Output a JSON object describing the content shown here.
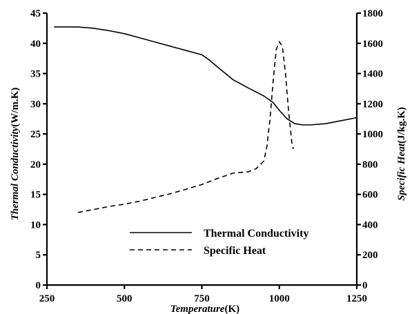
{
  "chart_data": {
    "type": "line",
    "x_axis": {
      "label_italic": "Temperature",
      "label_unit": "(K)",
      "range": [
        250,
        1250
      ],
      "ticks": [
        250,
        500,
        750,
        1000,
        1250
      ]
    },
    "y_left": {
      "label_italic": "Thermal Conductivity",
      "label_unit": "(W/m.K)",
      "range": [
        0,
        45
      ],
      "ticks": [
        0,
        5,
        10,
        15,
        20,
        25,
        30,
        35,
        40,
        45
      ]
    },
    "y_right": {
      "label_italic": "Specific Heat",
      "label_unit": "(J/kg.K)",
      "range": [
        0,
        1800
      ],
      "ticks": [
        0,
        200,
        400,
        600,
        800,
        1000,
        1200,
        1400,
        1600,
        1800
      ]
    },
    "grid": false,
    "legend_position": "bottom-center",
    "series": [
      {
        "name": "Thermal Conductivity",
        "axis": "left",
        "style": "solid",
        "x": [
          273,
          300,
          350,
          400,
          450,
          500,
          550,
          600,
          650,
          700,
          750,
          775,
          800,
          850,
          900,
          950,
          980,
          1000,
          1025,
          1050,
          1075,
          1100,
          1150,
          1200,
          1250
        ],
        "y": [
          42.7,
          42.7,
          42.7,
          42.5,
          42.1,
          41.6,
          40.9,
          40.2,
          39.5,
          38.8,
          38.1,
          37.2,
          36.1,
          34.0,
          32.6,
          31.3,
          30.2,
          28.9,
          27.5,
          26.7,
          26.5,
          26.5,
          26.7,
          27.2,
          27.7
        ]
      },
      {
        "name": "Specific Heat",
        "axis": "right",
        "style": "dashed",
        "x": [
          350,
          400,
          450,
          500,
          550,
          600,
          650,
          700,
          750,
          800,
          850,
          900,
          925,
          950,
          960,
          970,
          980,
          990,
          1000,
          1010,
          1020,
          1030,
          1040,
          1045
        ],
        "y": [
          480,
          500,
          520,
          535,
          555,
          580,
          605,
          635,
          665,
          705,
          740,
          750,
          770,
          820,
          920,
          1100,
          1350,
          1560,
          1610,
          1580,
          1400,
          1150,
          950,
          900
        ]
      }
    ]
  }
}
